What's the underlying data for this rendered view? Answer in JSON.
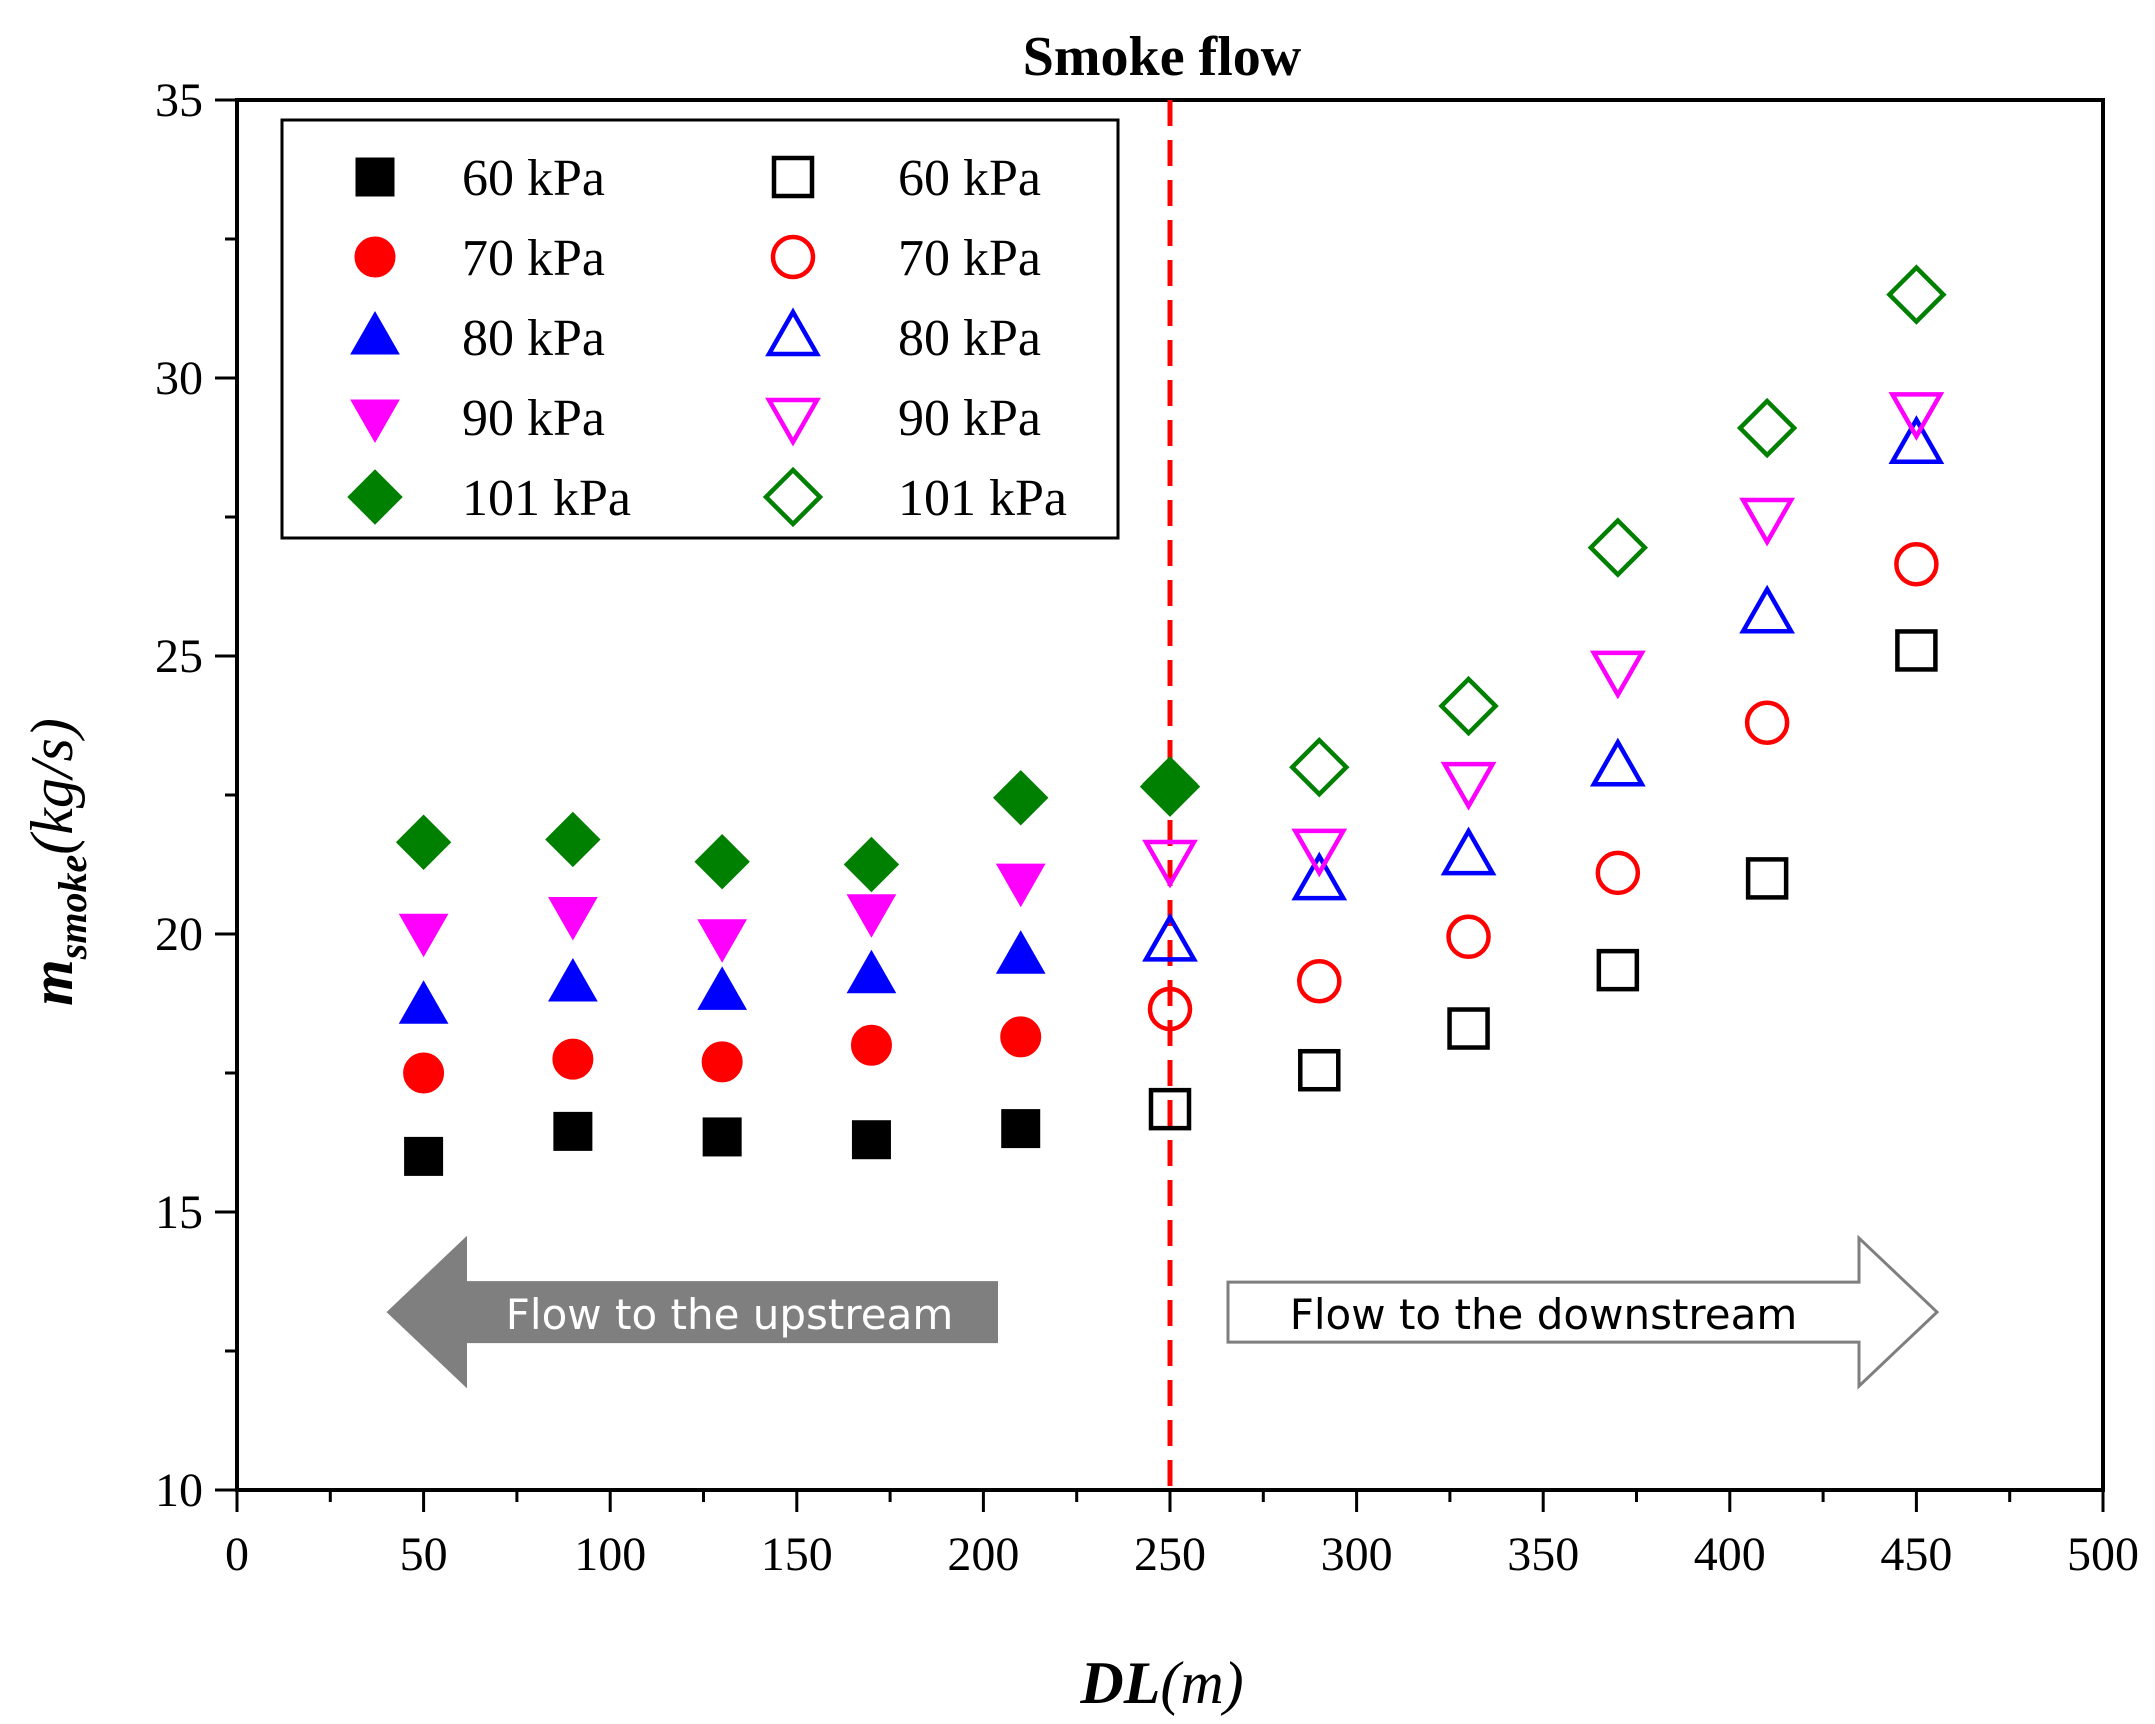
{
  "chart_data": {
    "type": "scatter",
    "title": "Smoke flow",
    "xlabel": {
      "main": "DL",
      "unit": "(m)"
    },
    "ylabel": {
      "main": "m",
      "subscript": "smoke",
      "unit": "(kg/s)"
    },
    "xlim": [
      0,
      500
    ],
    "ylim": [
      10,
      35
    ],
    "x_ticks": [
      0,
      50,
      100,
      150,
      200,
      250,
      300,
      350,
      400,
      450,
      500
    ],
    "y_ticks": [
      10,
      15,
      20,
      25,
      30,
      35
    ],
    "divider_x": 250,
    "divider_color": "#ff0000",
    "annotations": {
      "upstream": "Flow to the upstream",
      "downstream": "Flow to the downstream"
    },
    "legend_position": "top-left",
    "series": [
      {
        "name": "60 kPa",
        "marker": "square",
        "filled": true,
        "color": "#000000",
        "x": [
          50,
          90,
          130,
          170,
          210
        ],
        "values": [
          16.0,
          16.45,
          16.35,
          16.3,
          16.5
        ]
      },
      {
        "name": "70 kPa",
        "marker": "circle",
        "filled": true,
        "color": "#ff0000",
        "x": [
          50,
          90,
          130,
          170,
          210
        ],
        "values": [
          17.5,
          17.75,
          17.7,
          18.0,
          18.15
        ]
      },
      {
        "name": "80 kPa",
        "marker": "triangle-up",
        "filled": true,
        "color": "#0000ff",
        "x": [
          50,
          90,
          130,
          170,
          210
        ],
        "values": [
          18.7,
          19.1,
          18.95,
          19.25,
          19.6
        ]
      },
      {
        "name": "90 kPa",
        "marker": "triangle-down",
        "filled": true,
        "color": "#ff00ff",
        "x": [
          50,
          90,
          130,
          170,
          210
        ],
        "values": [
          20.05,
          20.35,
          19.95,
          20.4,
          20.95
        ]
      },
      {
        "name": "101 kPa",
        "marker": "diamond",
        "filled": true,
        "color": "#008000",
        "x": [
          50,
          90,
          130,
          170,
          210,
          250
        ],
        "values": [
          21.65,
          21.7,
          21.3,
          21.25,
          22.45,
          22.7
        ]
      },
      {
        "name": "60 kPa",
        "marker": "square",
        "filled": false,
        "color": "#000000",
        "x": [
          250,
          290,
          330,
          370,
          410,
          450
        ],
        "values": [
          16.85,
          17.55,
          18.3,
          19.35,
          21.0,
          25.1
        ]
      },
      {
        "name": "70 kPa",
        "marker": "circle",
        "filled": false,
        "color": "#ff0000",
        "x": [
          250,
          290,
          330,
          370,
          410,
          450
        ],
        "values": [
          18.65,
          19.15,
          19.95,
          21.1,
          23.8,
          26.65
        ]
      },
      {
        "name": "80 kPa",
        "marker": "triangle-up",
        "filled": false,
        "color": "#0000ff",
        "x": [
          250,
          290,
          330,
          370,
          410,
          450
        ],
        "values": [
          19.85,
          20.95,
          21.4,
          23.0,
          25.75,
          28.8
        ]
      },
      {
        "name": "90 kPa",
        "marker": "triangle-down",
        "filled": false,
        "color": "#ff00ff",
        "x": [
          250,
          290,
          330,
          370,
          410,
          450
        ],
        "values": [
          21.35,
          21.55,
          22.75,
          24.75,
          27.5,
          29.4
        ]
      },
      {
        "name": "101 kPa",
        "marker": "diamond",
        "filled": false,
        "color": "#008000",
        "x": [
          250,
          290,
          330,
          370,
          410,
          450
        ],
        "values": [
          22.65,
          23.0,
          24.1,
          26.95,
          29.1,
          31.5
        ]
      }
    ]
  }
}
